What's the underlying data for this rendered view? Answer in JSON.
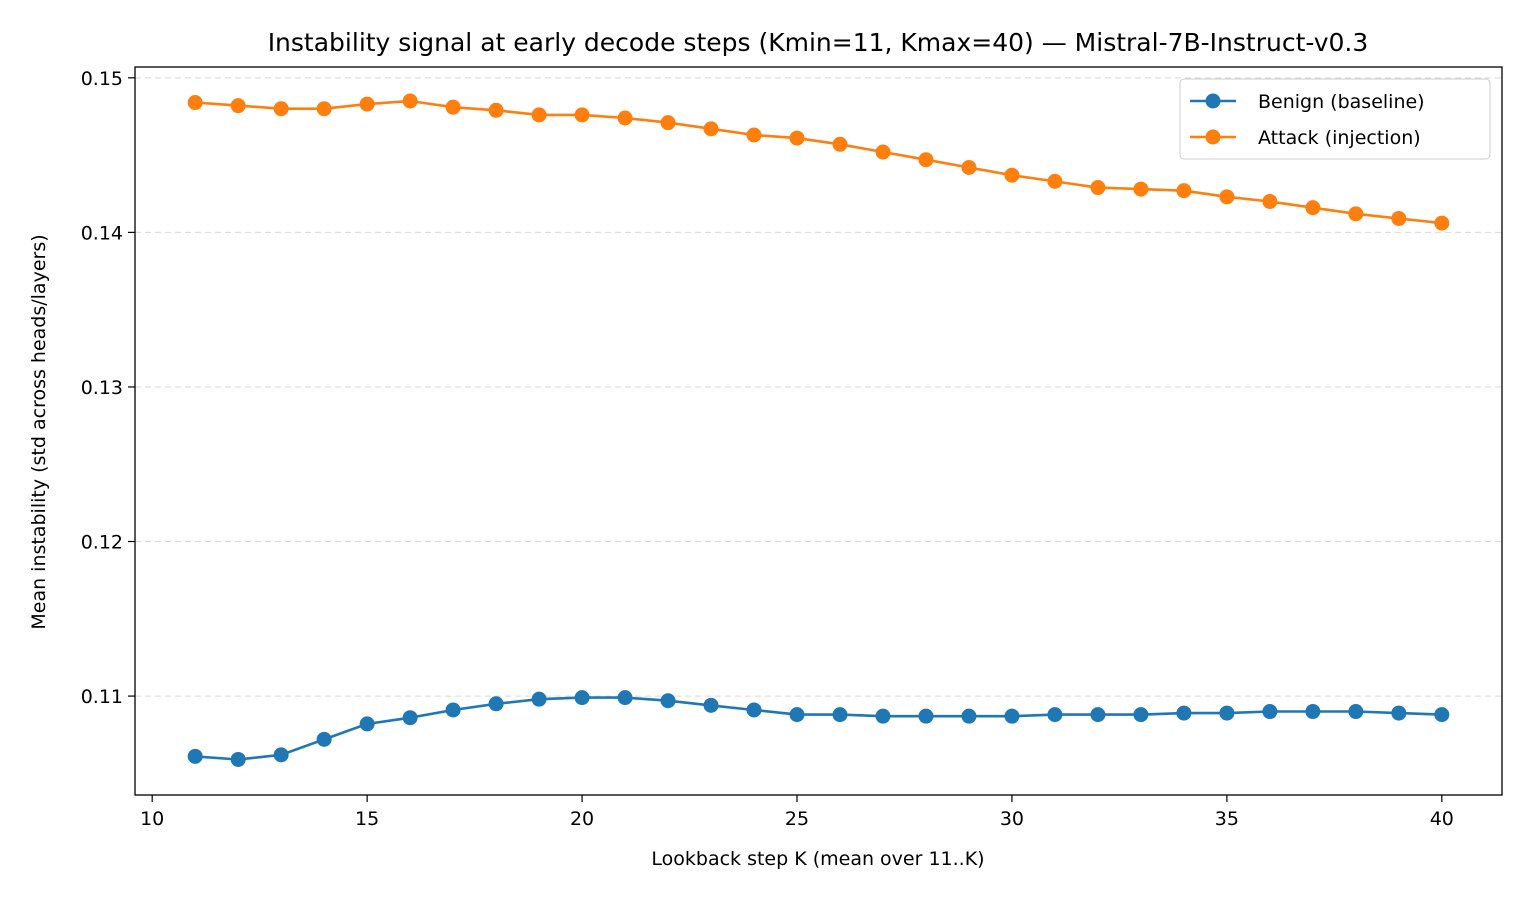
{
  "chart_data": {
    "type": "line",
    "title": "Instability signal at early decode steps (Kmin=11, Kmax=40) — Mistral-7B-Instruct-v0.3",
    "xlabel": "Lookback step K (mean over 11..K)",
    "ylabel": "Mean instability (std across heads/layers)",
    "xlim": [
      9.6,
      41.4
    ],
    "ylim": [
      0.1036,
      0.1507
    ],
    "xticks": [
      10,
      15,
      20,
      25,
      30,
      35,
      40
    ],
    "yticks": [
      0.11,
      0.12,
      0.13,
      0.14,
      0.15
    ],
    "ytick_labels": [
      "0.11",
      "0.12",
      "0.13",
      "0.14",
      "0.15"
    ],
    "grid": "y-dashed",
    "legend_position": "top-right",
    "x": [
      11,
      12,
      13,
      14,
      15,
      16,
      17,
      18,
      19,
      20,
      21,
      22,
      23,
      24,
      25,
      26,
      27,
      28,
      29,
      30,
      31,
      32,
      33,
      34,
      35,
      36,
      37,
      38,
      39,
      40
    ],
    "series": [
      {
        "name": "Benign (baseline)",
        "color": "#1f77b4",
        "values": [
          0.1061,
          0.1059,
          0.1062,
          0.1072,
          0.1082,
          0.1086,
          0.1091,
          0.1095,
          0.1098,
          0.1099,
          0.1099,
          0.1097,
          0.1094,
          0.1091,
          0.1088,
          0.1088,
          0.1087,
          0.1087,
          0.1087,
          0.1087,
          0.1088,
          0.1088,
          0.1088,
          0.1089,
          0.1089,
          0.109,
          0.109,
          0.109,
          0.1089,
          0.1088
        ]
      },
      {
        "name": "Attack (injection)",
        "color": "#ff7f0e",
        "values": [
          0.1484,
          0.1482,
          0.148,
          0.148,
          0.1483,
          0.1485,
          0.1481,
          0.1479,
          0.1476,
          0.1476,
          0.1474,
          0.1471,
          0.1467,
          0.1463,
          0.1461,
          0.1457,
          0.1452,
          0.1447,
          0.1442,
          0.1437,
          0.1433,
          0.1429,
          0.1428,
          0.1427,
          0.1423,
          0.142,
          0.1416,
          0.1412,
          0.1409,
          0.1406
        ]
      }
    ]
  }
}
